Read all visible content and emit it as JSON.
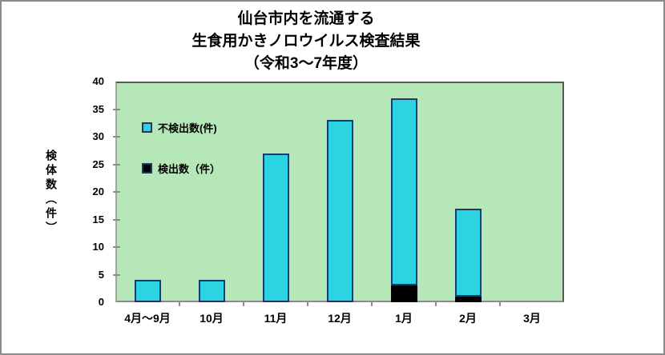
{
  "title_lines": [
    "仙台市内を流通する",
    "生食用かきノロウイルス検査結果",
    "（令和3～7年度）"
  ],
  "chart_data": {
    "type": "bar",
    "stacked": true,
    "title": "仙台市内を流通する 生食用かきノロウイルス検査結果（令和3～7年度）",
    "categories": [
      "4月～9月",
      "10月",
      "11月",
      "12月",
      "1月",
      "2月",
      "3月"
    ],
    "series": [
      {
        "name": "不検出数(件)",
        "role": "not-detected",
        "color": "#2bd3e3",
        "border_color": "#1f3864",
        "values": [
          4,
          4,
          27,
          33,
          34,
          16,
          0
        ]
      },
      {
        "name": "検出数（件）",
        "role": "detected",
        "color": "#000000",
        "border_color": "#1f3864",
        "values": [
          0,
          0,
          0,
          0,
          3,
          1,
          0
        ]
      }
    ],
    "totals": [
      4,
      4,
      27,
      33,
      37,
      17,
      0
    ],
    "ylabel": "検体数（件）",
    "xlabel": "",
    "ylim": [
      0,
      40
    ],
    "ytick_step": 5,
    "grid": false,
    "legend_position": "inside-top-left",
    "colors": {
      "plot_background": "#b6e7b9",
      "axis_line": "#8c8c8c",
      "plot_border_dark": "#595959",
      "outer_border": "#8c8c8c",
      "text": "#000000"
    }
  }
}
